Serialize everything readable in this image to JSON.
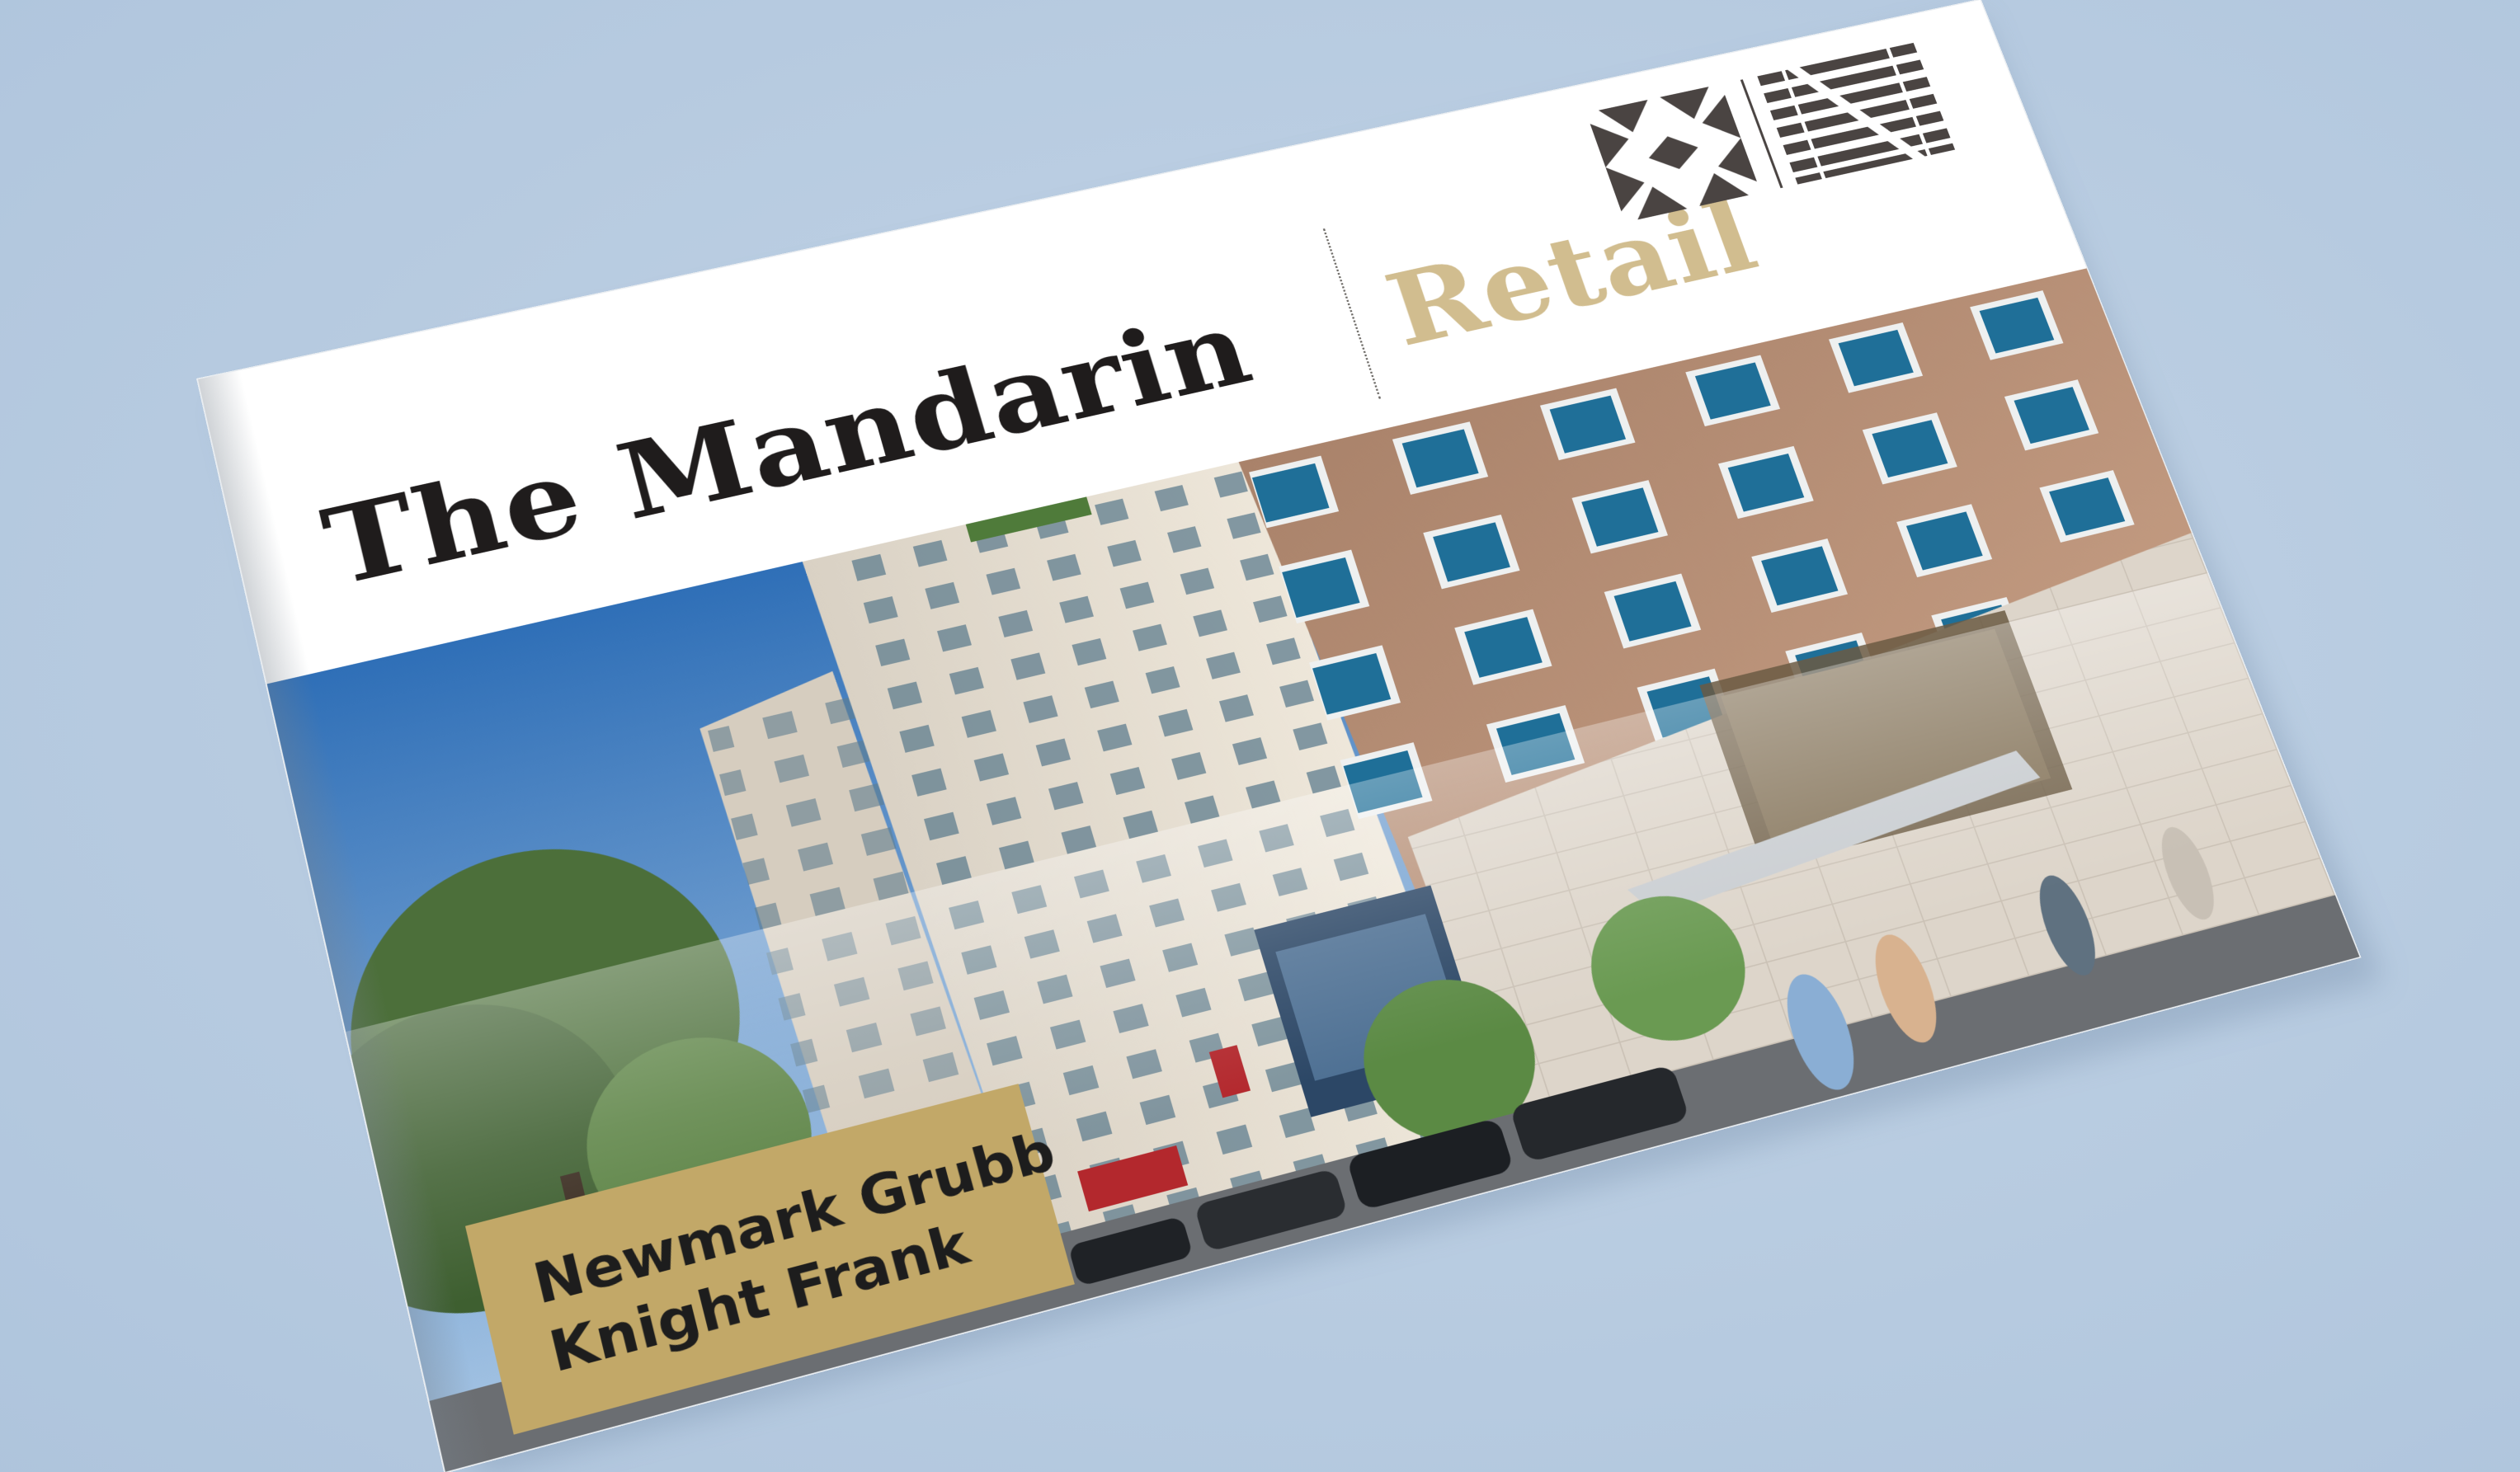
{
  "cover": {
    "title": "The Mandarin",
    "subtitle": "Retail",
    "badge_lines": [
      "Newmark Grubb",
      "Knight Frank"
    ]
  },
  "icons": {
    "logo": "newmark-knight-frank-x-n-logo",
    "photo": "city-street-buildings-photo"
  },
  "colors": {
    "background": "#b7cbe0",
    "title": "#1f1c1c",
    "subtitle": "#d1bd8f",
    "badge": "#c2a868",
    "logo": "#4a4442"
  }
}
